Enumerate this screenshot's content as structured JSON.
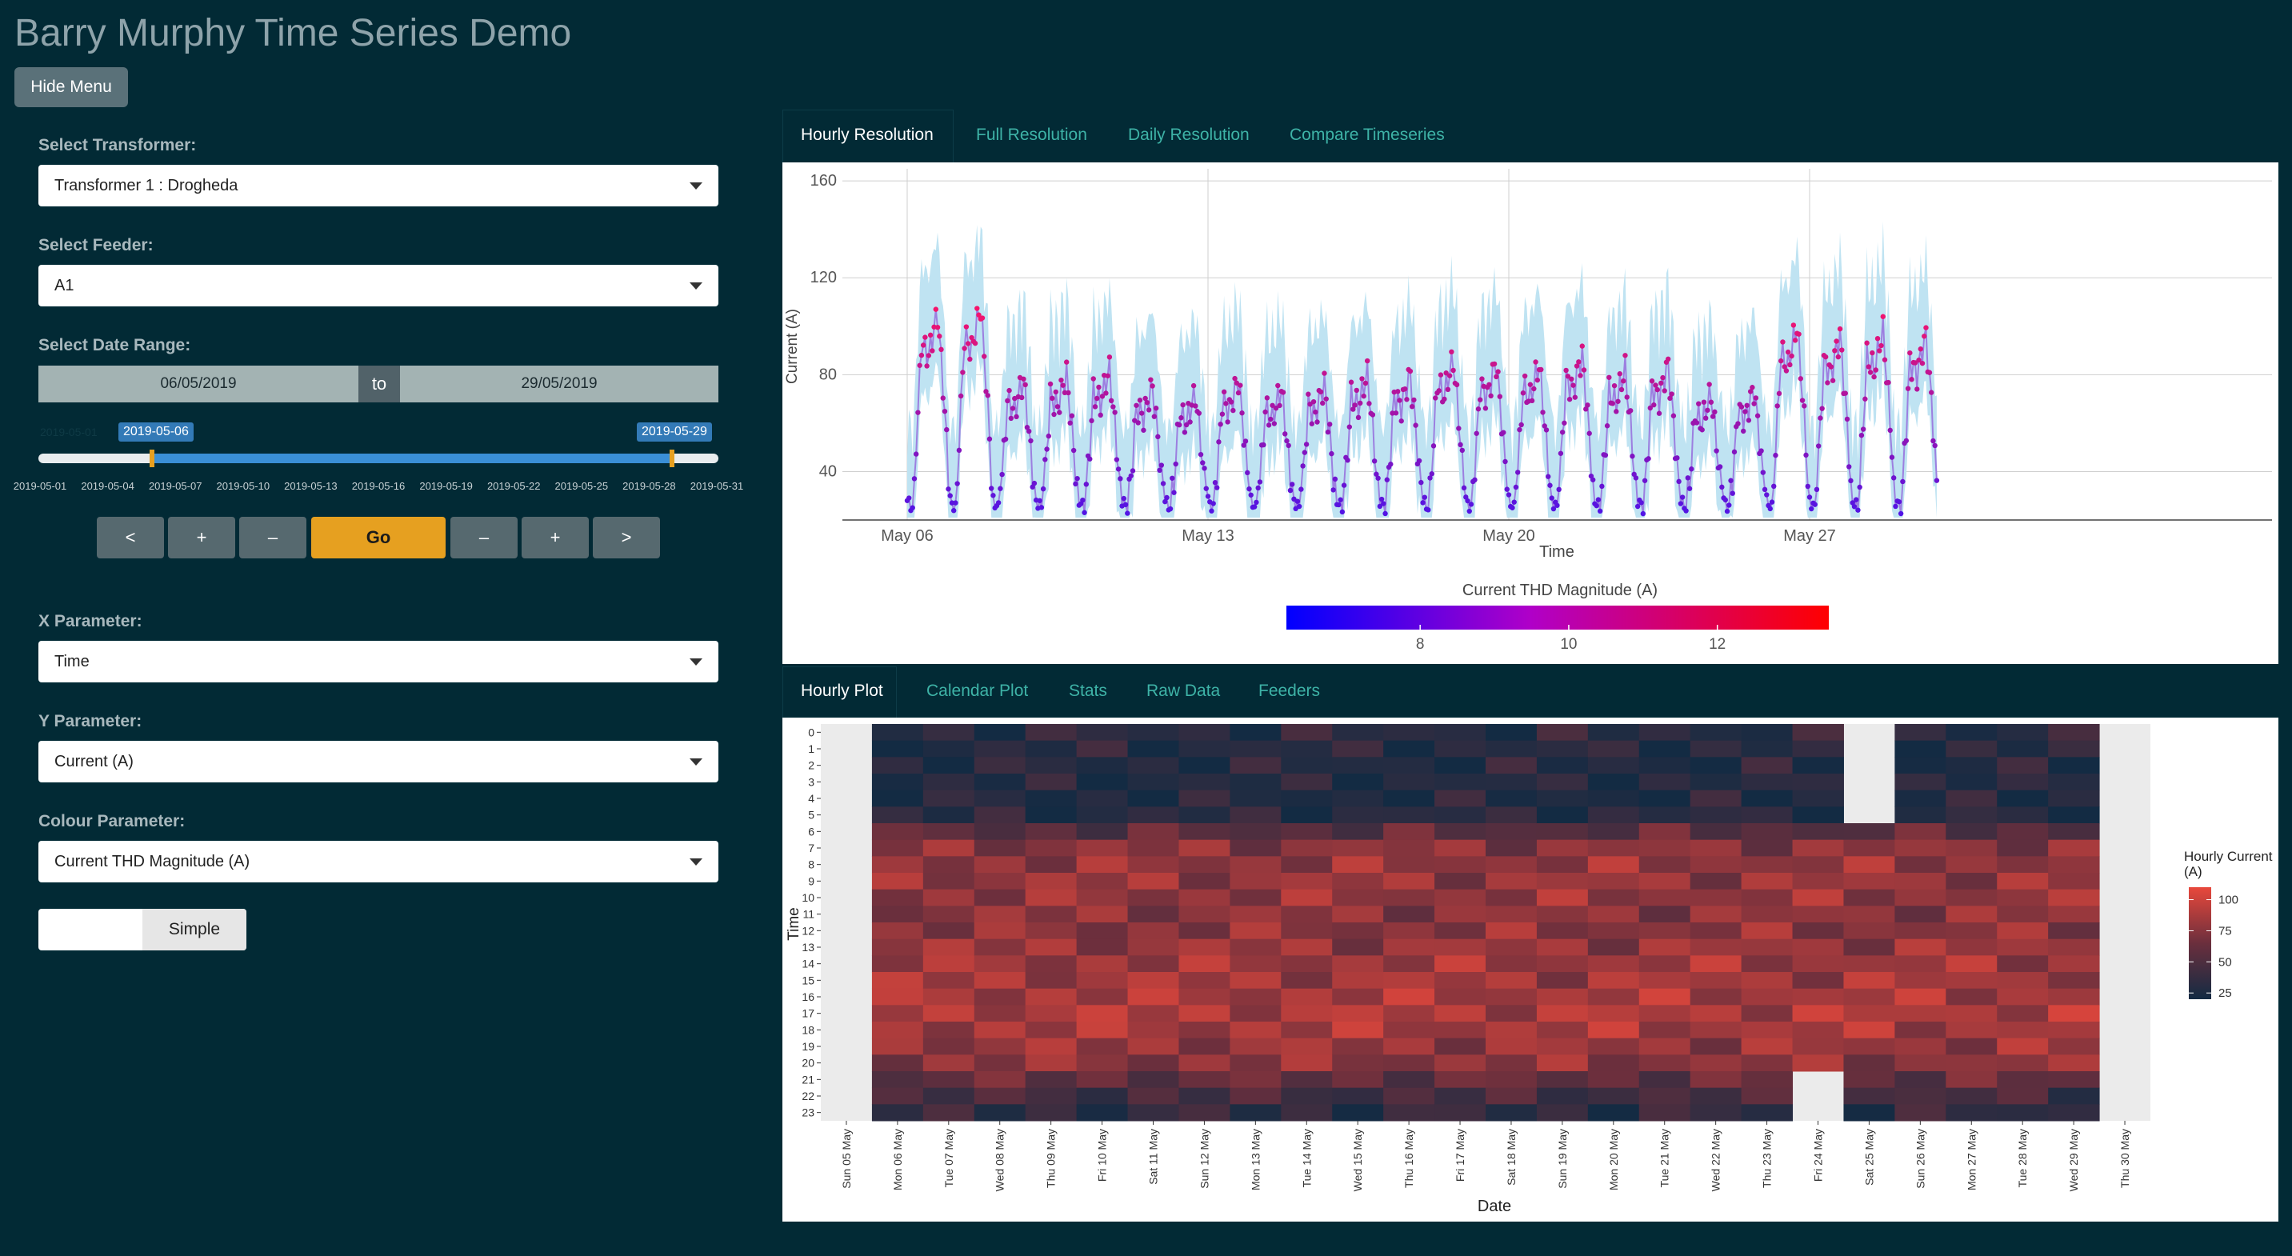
{
  "app": {
    "title": "Barry Murphy Time Series Demo",
    "hide_menu_label": "Hide Menu"
  },
  "sidebar": {
    "transformer": {
      "label": "Select Transformer:",
      "value": "Transformer 1 : Drogheda"
    },
    "feeder": {
      "label": "Select Feeder:",
      "value": "A1"
    },
    "date_range": {
      "label": "Select Date Range:",
      "start": "06/05/2019",
      "to": "to",
      "end": "29/05/2019"
    },
    "slider": {
      "min_label": "2019-05-01",
      "from_label": "2019-05-06",
      "to_label": "2019-05-29",
      "ticks": [
        "2019-05-01",
        "2019-05-04",
        "2019-05-07",
        "2019-05-10",
        "2019-05-13",
        "2019-05-16",
        "2019-05-19",
        "2019-05-22",
        "2019-05-25",
        "2019-05-28",
        "2019-05-31"
      ]
    },
    "controls": [
      "<",
      "+",
      "–",
      "Go",
      "–",
      "+",
      ">"
    ],
    "x_param": {
      "label": "X Parameter:",
      "value": "Time"
    },
    "y_param": {
      "label": "Y Parameter:",
      "value": "Current (A)"
    },
    "colour_param": {
      "label": "Colour Parameter:",
      "value": "Current THD Magnitude (A)"
    },
    "toggle_label": "Simple"
  },
  "top_tabs": [
    {
      "label": "Hourly Resolution",
      "active": true
    },
    {
      "label": "Full Resolution",
      "active": false
    },
    {
      "label": "Daily Resolution",
      "active": false
    },
    {
      "label": "Compare Timeseries",
      "active": false
    }
  ],
  "bottom_tabs": [
    {
      "label": "Hourly Plot",
      "active": true
    },
    {
      "label": "Calendar Plot",
      "active": false
    },
    {
      "label": "Stats",
      "active": false
    },
    {
      "label": "Raw Data",
      "active": false
    },
    {
      "label": "Feeders",
      "active": false
    }
  ],
  "colors": {
    "background": "#022a35",
    "accent_go": "#e6a020",
    "tab_link": "#3eb3a7",
    "ribbon": "#bfe3f2",
    "line": "#9c7fe0",
    "thd_low": "#0000ff",
    "thd_mid": "#b000c8",
    "thd_high": "#ff0000",
    "heat_low": "#132b43",
    "heat_high": "#e8483c"
  },
  "chart_data": [
    {
      "type": "line",
      "xlabel": "Time",
      "ylabel": "Current (A)",
      "x_ticks": [
        "May 06",
        "May 13",
        "May 20",
        "May 27"
      ],
      "y_ticks": [
        40,
        80,
        120,
        160
      ],
      "ylim": [
        20,
        165
      ],
      "x_range": [
        "2019-05-06",
        "2019-05-29"
      ],
      "colorbar": {
        "title": "Current THD Magnitude (A)",
        "ticks": [
          8,
          10,
          12
        ],
        "range": [
          6.2,
          13.5
        ]
      },
      "daily_profile": {
        "hours": [
          0,
          3,
          6,
          8,
          12,
          15,
          17,
          20,
          23
        ],
        "current": [
          28,
          25,
          55,
          80,
          75,
          85,
          90,
          65,
          35
        ]
      },
      "daily_peak_current": [
        105,
        108,
        78,
        80,
        82,
        75,
        72,
        78,
        74,
        76,
        80,
        80,
        86,
        85,
        84,
        88,
        82,
        84,
        72,
        74,
        100,
        96,
        98,
        96
      ]
    },
    {
      "type": "heatmap",
      "xlabel": "Date",
      "ylabel": "Time",
      "x_labels": [
        "Sun 05 May",
        "Mon 06 May",
        "Tue 07 May",
        "Wed 08 May",
        "Thu 09 May",
        "Fri 10 May",
        "Sat 11 May",
        "Sun 12 May",
        "Mon 13 May",
        "Tue 14 May",
        "Wed 15 May",
        "Thu 16 May",
        "Fri 17 May",
        "Sat 18 May",
        "Sun 19 May",
        "Mon 20 May",
        "Tue 21 May",
        "Wed 22 May",
        "Thu 23 May",
        "Fri 24 May",
        "Sat 25 May",
        "Sun 26 May",
        "Mon 27 May",
        "Tue 28 May",
        "Wed 29 May",
        "Thu 30 May"
      ],
      "y_labels": [
        "0",
        "1",
        "2",
        "3",
        "4",
        "5",
        "6",
        "7",
        "8",
        "9",
        "10",
        "11",
        "12",
        "13",
        "14",
        "15",
        "16",
        "17",
        "18",
        "19",
        "20",
        "21",
        "22",
        "23"
      ],
      "legend": {
        "title": "Hourly Current (A)",
        "ticks": [
          25,
          50,
          75,
          100
        ],
        "range": [
          20,
          110
        ]
      },
      "profile_by_hour": [
        32,
        30,
        29,
        28,
        27,
        30,
        55,
        75,
        78,
        80,
        78,
        76,
        75,
        80,
        82,
        84,
        85,
        88,
        85,
        80,
        76,
        60,
        45,
        35
      ],
      "missing_cells": [
        {
          "date": "Sat 25 May",
          "hours": [
            0,
            1,
            2,
            3,
            4,
            5
          ]
        },
        {
          "date": "Fri 24 May",
          "hours": [
            21,
            22,
            23
          ]
        }
      ]
    }
  ]
}
